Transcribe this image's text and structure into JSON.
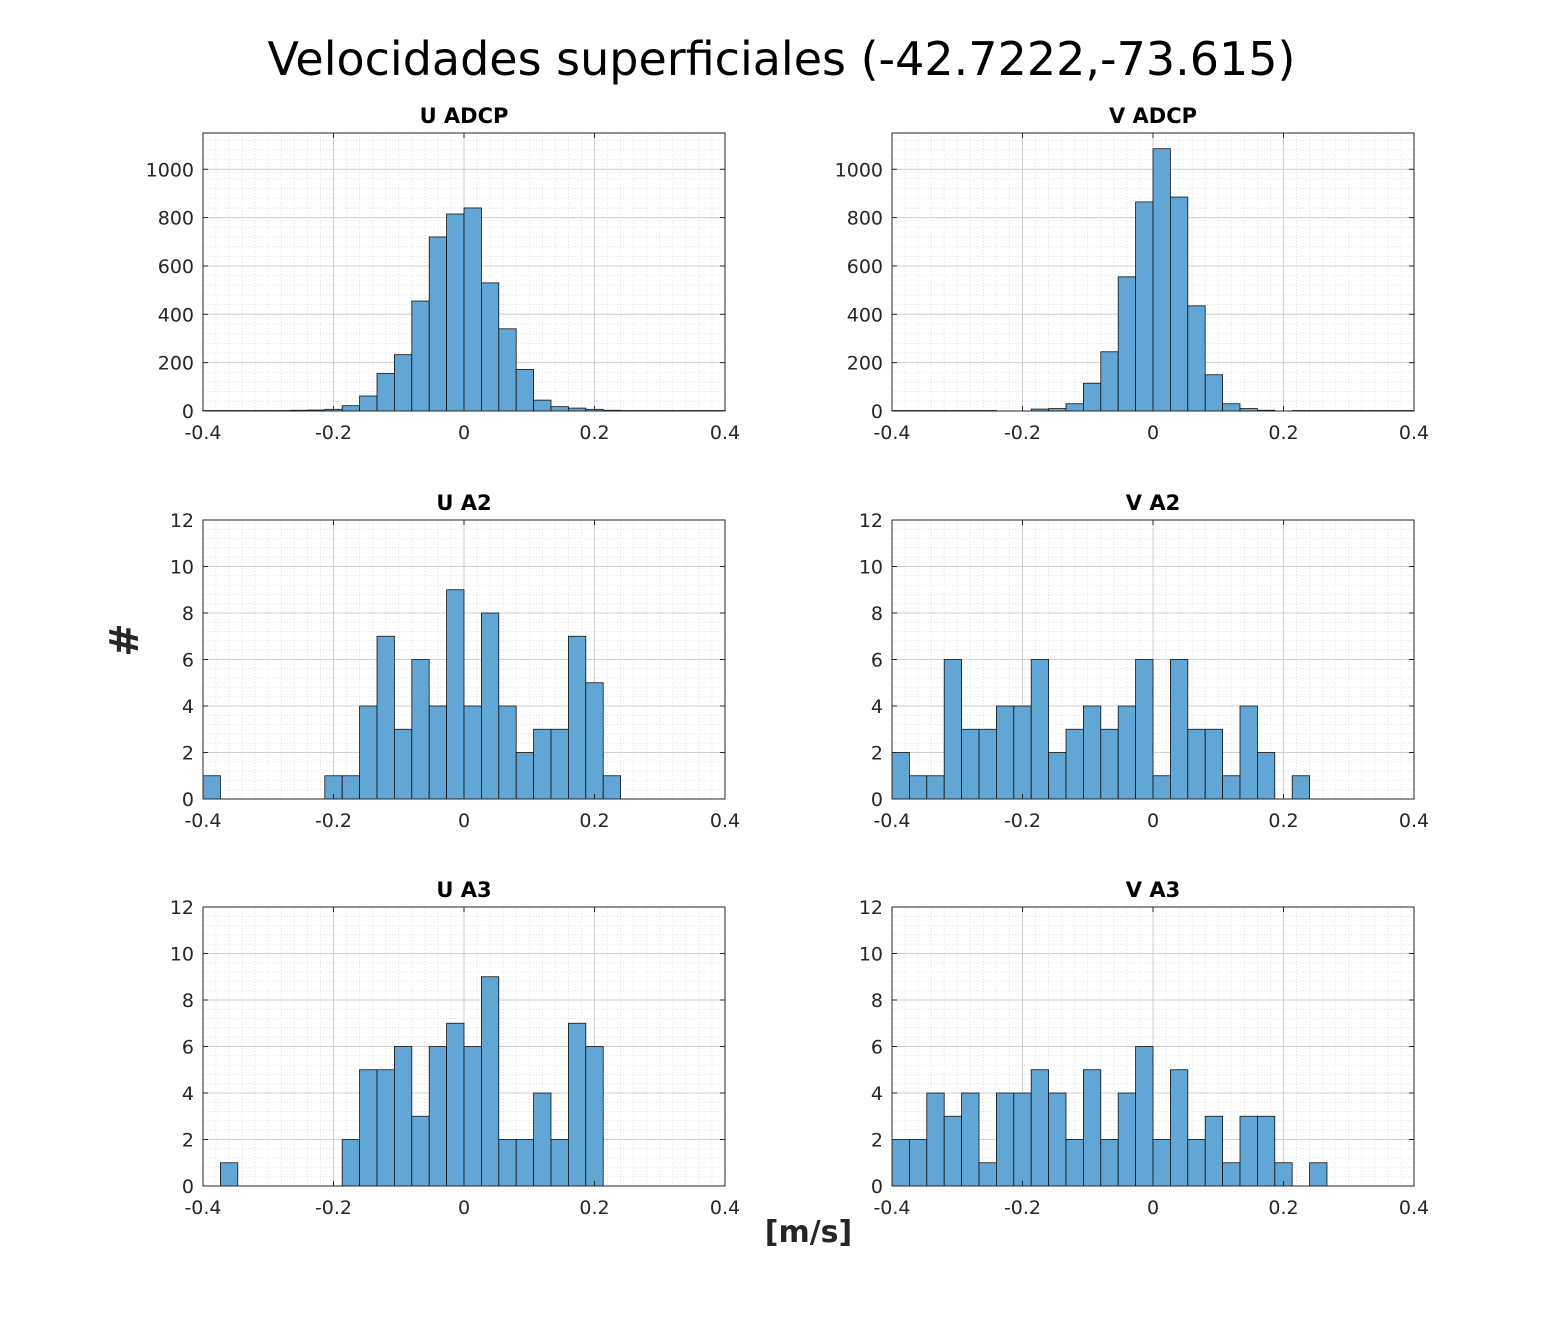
{
  "figure": {
    "title": "Velocidades superficiales (-42.7222,-73.615)",
    "ylabel": "#",
    "xlabel": "[m/s]"
  },
  "colors": {
    "bar_fill": "#62a6d6",
    "bar_edge": "#111111",
    "axis": "#262626",
    "grid": "#d0d0d0"
  },
  "chart_data": [
    {
      "type": "bar",
      "title": "U ADCP",
      "xlim": [
        -0.4,
        0.4
      ],
      "ylim": [
        0,
        1150
      ],
      "xticks": [
        "-0.4",
        "-0.2",
        "0",
        "0.2",
        "0.4"
      ],
      "yticks": [
        "0",
        "200",
        "400",
        "600",
        "800",
        "1000"
      ],
      "grid": true,
      "bin_edges": [
        -0.4,
        0.4
      ],
      "bin_width": 0.02667,
      "values": [
        2,
        2,
        2,
        2,
        2,
        3,
        4,
        7,
        22,
        62,
        155,
        233,
        455,
        720,
        815,
        840,
        530,
        340,
        172,
        45,
        18,
        12,
        7,
        3,
        2,
        2,
        2,
        2,
        2,
        2
      ]
    },
    {
      "type": "bar",
      "title": "V ADCP",
      "xlim": [
        -0.4,
        0.4
      ],
      "ylim": [
        0,
        1150
      ],
      "xticks": [
        "-0.4",
        "-0.2",
        "0",
        "0.2",
        "0.4"
      ],
      "yticks": [
        "0",
        "200",
        "400",
        "600",
        "800",
        "1000"
      ],
      "grid": true,
      "bin_edges": [
        -0.4,
        0.4
      ],
      "bin_width": 0.02667,
      "values": [
        2,
        2,
        2,
        2,
        2,
        2,
        0,
        0,
        8,
        10,
        30,
        115,
        245,
        555,
        865,
        1085,
        885,
        435,
        150,
        30,
        10,
        3,
        0,
        2,
        2,
        2,
        2,
        2,
        2,
        2
      ]
    },
    {
      "type": "bar",
      "title": "U A2",
      "xlim": [
        -0.4,
        0.4
      ],
      "ylim": [
        0,
        12
      ],
      "xticks": [
        "-0.4",
        "-0.2",
        "0",
        "0.2",
        "0.4"
      ],
      "yticks": [
        "0",
        "2",
        "4",
        "6",
        "8",
        "10",
        "12"
      ],
      "grid": true,
      "bin_edges": [
        -0.4,
        0.4
      ],
      "bin_width": 0.02667,
      "values": [
        1,
        0,
        0,
        0,
        0,
        0,
        0,
        1,
        1,
        4,
        7,
        3,
        6,
        4,
        9,
        4,
        8,
        4,
        2,
        3,
        3,
        7,
        5,
        1,
        0,
        0,
        0,
        0,
        0,
        0
      ]
    },
    {
      "type": "bar",
      "title": "V A2",
      "xlim": [
        -0.4,
        0.4
      ],
      "ylim": [
        0,
        12
      ],
      "xticks": [
        "-0.4",
        "-0.2",
        "0",
        "0.2",
        "0.4"
      ],
      "yticks": [
        "0",
        "2",
        "4",
        "6",
        "8",
        "10",
        "12"
      ],
      "grid": true,
      "bin_edges": [
        -0.4,
        0.4
      ],
      "bin_width": 0.02667,
      "values": [
        2,
        1,
        1,
        6,
        3,
        3,
        4,
        4,
        6,
        2,
        3,
        4,
        3,
        4,
        6,
        1,
        6,
        3,
        3,
        1,
        4,
        2,
        0,
        1,
        0,
        0,
        0,
        0,
        0,
        0
      ]
    },
    {
      "type": "bar",
      "title": "U A3",
      "xlim": [
        -0.4,
        0.4
      ],
      "ylim": [
        0,
        12
      ],
      "xticks": [
        "-0.4",
        "-0.2",
        "0",
        "0.2",
        "0.4"
      ],
      "yticks": [
        "0",
        "2",
        "4",
        "6",
        "8",
        "10",
        "12"
      ],
      "grid": true,
      "bin_edges": [
        -0.4,
        0.4
      ],
      "bin_width": 0.02667,
      "values": [
        0,
        1,
        0,
        0,
        0,
        0,
        0,
        0,
        2,
        5,
        5,
        6,
        3,
        6,
        7,
        6,
        9,
        2,
        2,
        4,
        2,
        7,
        6,
        0,
        0,
        0,
        0,
        0,
        0,
        0
      ]
    },
    {
      "type": "bar",
      "title": "V A3",
      "xlim": [
        -0.4,
        0.4
      ],
      "ylim": [
        0,
        12
      ],
      "xticks": [
        "-0.4",
        "-0.2",
        "0",
        "0.2",
        "0.4"
      ],
      "yticks": [
        "0",
        "2",
        "4",
        "6",
        "8",
        "10",
        "12"
      ],
      "grid": true,
      "bin_edges": [
        -0.4,
        0.4
      ],
      "bin_width": 0.02667,
      "values": [
        2,
        2,
        4,
        3,
        4,
        1,
        4,
        4,
        5,
        4,
        2,
        5,
        2,
        4,
        6,
        2,
        5,
        2,
        3,
        1,
        3,
        3,
        1,
        0,
        1,
        0,
        0,
        0,
        0,
        0
      ]
    }
  ]
}
